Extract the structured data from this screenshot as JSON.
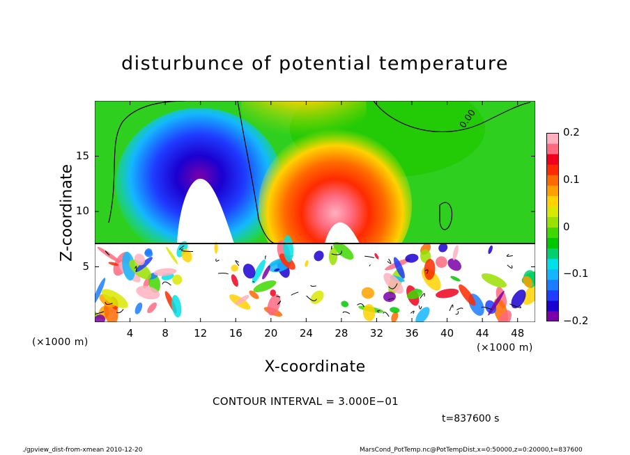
{
  "chart_data": {
    "type": "heatmap",
    "title": "disturbunce of potential temperature",
    "xlabel": "X-coordinate",
    "ylabel": "Z-coordinate",
    "x_unit": "(×1000 m)",
    "x_unit_right": "(×1000 m)",
    "x_ticks": [
      "4",
      "8",
      "12",
      "16",
      "20",
      "24",
      "28",
      "32",
      "36",
      "40",
      "44",
      "48"
    ],
    "x_range": [
      0,
      50
    ],
    "y_ticks": [
      "5",
      "10",
      "15"
    ],
    "y_range": [
      0,
      20
    ],
    "colorbar": {
      "ticks": [
        "0.2",
        "0.1",
        "0",
        "−0.1",
        "−0.2"
      ],
      "range": [
        -0.2,
        0.2
      ],
      "colors": [
        "#7a00a8",
        "#1b00d0",
        "#1f3cff",
        "#1a7dff",
        "#14b7ff",
        "#00e0e8",
        "#00d070",
        "#00c800",
        "#40d800",
        "#9ae000",
        "#d8e800",
        "#ffd200",
        "#ffa000",
        "#ff6a00",
        "#ff2a00",
        "#f0001c",
        "#ff6a80",
        "#ffb0c0"
      ]
    },
    "contour_label": "0.00",
    "contour_interval_text": "CONTOUR INTERVAL = 3.000E−01",
    "time_text": "t=837600 s"
  },
  "footer": {
    "left": "./gpview_dist-from-xmean   2010-12-20",
    "right": "MarsCond_PotTemp.nc@PotTempDist,x=0:50000,z=0:20000,t=837600"
  }
}
